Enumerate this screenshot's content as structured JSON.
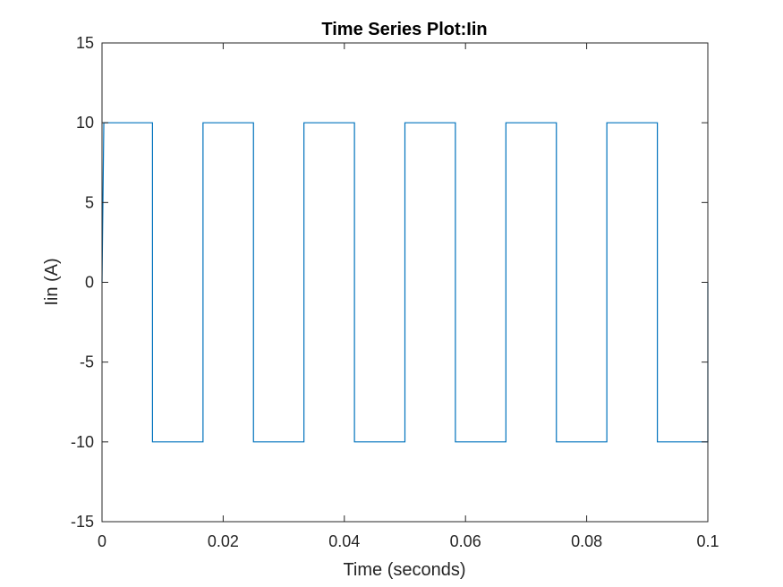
{
  "chart_data": {
    "type": "line",
    "title": "Time Series Plot:Iin",
    "xlabel": "Time (seconds)",
    "ylabel": "Iin (A)",
    "xlim": [
      0,
      0.1
    ],
    "ylim": [
      -15,
      15
    ],
    "xticks": [
      0,
      0.02,
      0.04,
      0.06,
      0.08,
      0.1
    ],
    "xtick_labels": [
      "0",
      "0.02",
      "0.04",
      "0.06",
      "0.08",
      "0.1"
    ],
    "yticks": [
      15,
      10,
      5,
      0,
      -5,
      -10,
      -15
    ],
    "ytick_labels": [
      "15",
      "10",
      "5",
      "0",
      "-5",
      "-10",
      "-15"
    ],
    "grid": false,
    "line_color": "#0072BD",
    "axis_color": "#262626",
    "series": [
      {
        "x": [
          0,
          0.0003,
          0.00833,
          0.00833,
          0.01667,
          0.01667,
          0.025,
          0.025,
          0.03333,
          0.03333,
          0.04167,
          0.04167,
          0.05,
          0.05,
          0.05833,
          0.05833,
          0.06667,
          0.06667,
          0.075,
          0.075,
          0.08333,
          0.08333,
          0.09167,
          0.09167,
          0.1,
          0.1
        ],
        "y": [
          0,
          10,
          10,
          -10,
          -10,
          10,
          10,
          -10,
          -10,
          10,
          10,
          -10,
          -10,
          10,
          10,
          -10,
          -10,
          10,
          10,
          -10,
          -10,
          10,
          10,
          -10,
          -10,
          0
        ]
      }
    ]
  }
}
